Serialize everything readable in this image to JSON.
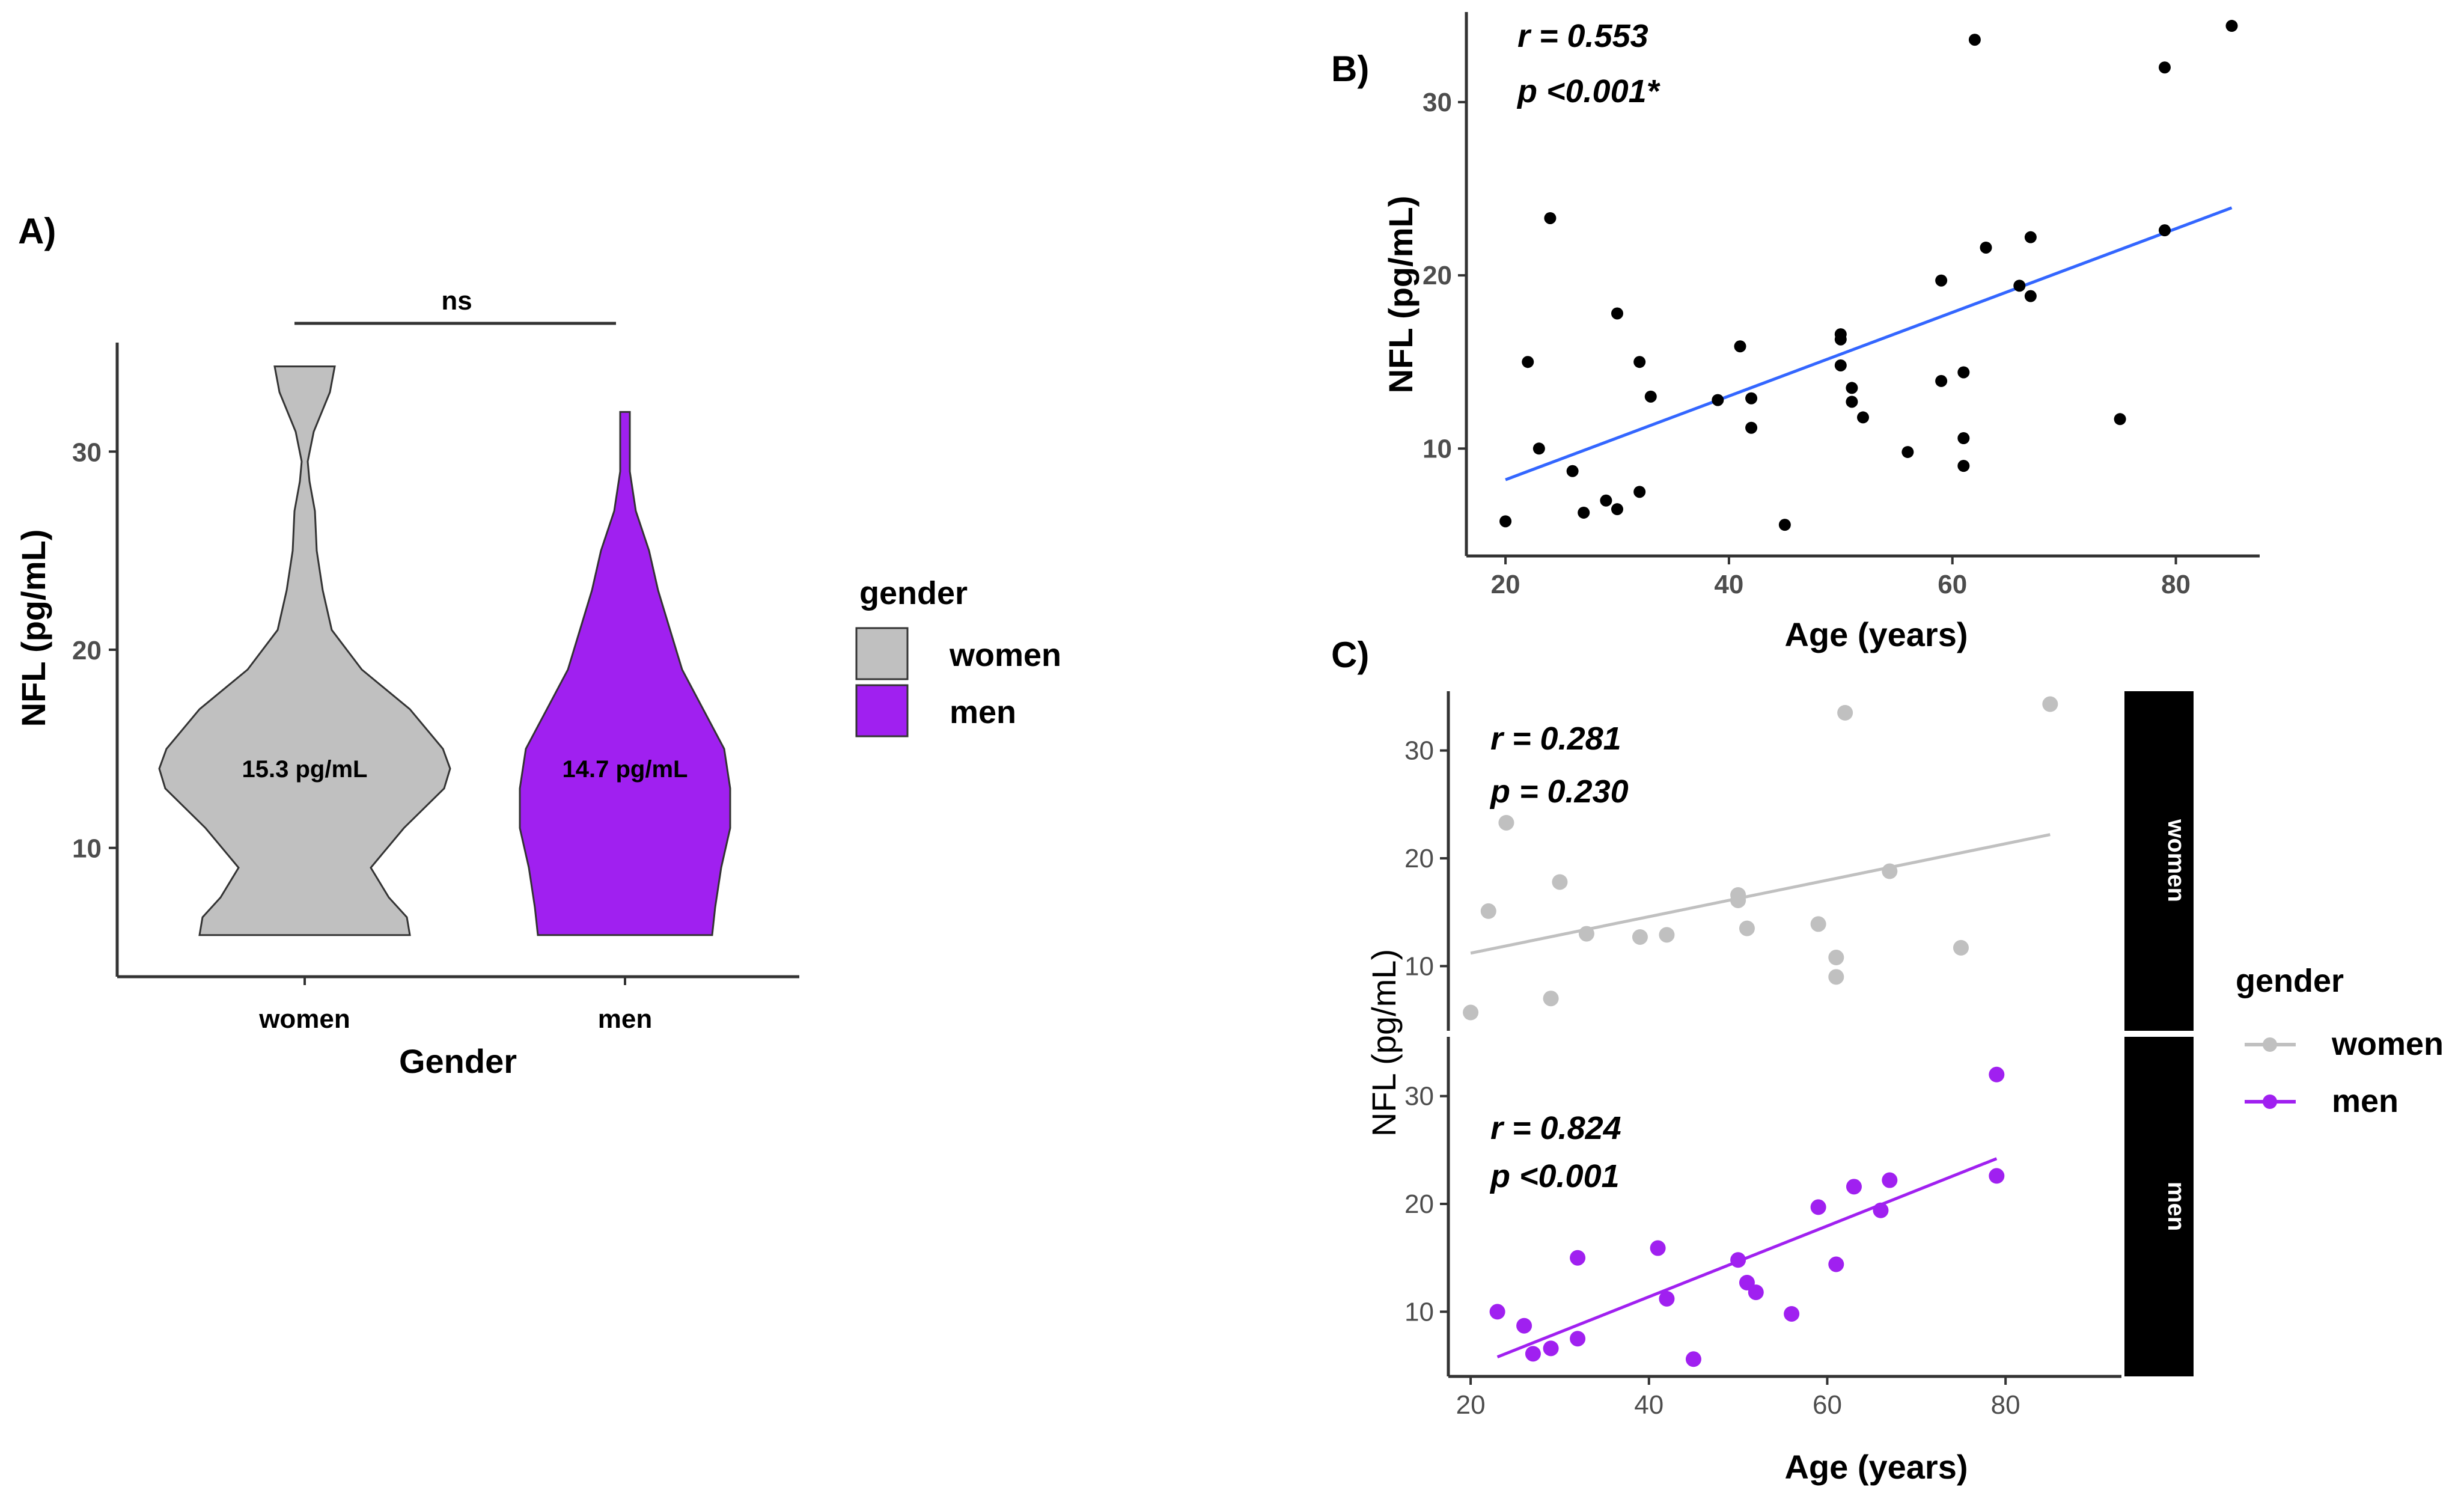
{
  "chart_data": [
    {
      "panel": "A)",
      "type": "violin",
      "xlabel": "Gender",
      "ylabel": "NFL (pg/mL)",
      "categories": [
        "women",
        "men"
      ],
      "colors": [
        "#c0c0c0",
        "#a020f0"
      ],
      "yticks": [
        10,
        20,
        30
      ],
      "ylim": [
        3.5,
        35.5
      ],
      "median_labels": [
        "15.3 pg/mL",
        "14.7 pg/mL"
      ],
      "significance": "ns",
      "legend": {
        "title": "gender",
        "entries": [
          "women",
          "men"
        ]
      }
    },
    {
      "panel": "B)",
      "type": "scatter",
      "xlabel": "Age (years)",
      "ylabel": "NFL (pg/mL)",
      "xticks": [
        20,
        40,
        60,
        80
      ],
      "yticks": [
        10,
        20,
        30
      ],
      "xlim": [
        16.5,
        87.5
      ],
      "ylim": [
        3.8,
        35.2
      ],
      "point_color": "#000000",
      "line_color": "#3366ff",
      "fit": {
        "x0": 20,
        "y0": 8.2,
        "x1": 85,
        "y1": 23.9
      },
      "r_label": "r = 0.553",
      "p_label": "p <0.001*",
      "points": [
        [
          20,
          5.8
        ],
        [
          22,
          15
        ],
        [
          23,
          10
        ],
        [
          24,
          23.3
        ],
        [
          26,
          8.7
        ],
        [
          27,
          6.3
        ],
        [
          29,
          7
        ],
        [
          30,
          6.5
        ],
        [
          30,
          17.8
        ],
        [
          32,
          15
        ],
        [
          32,
          7.5
        ],
        [
          33,
          13
        ],
        [
          39,
          12.8
        ],
        [
          41,
          15.9
        ],
        [
          42,
          12.9
        ],
        [
          42,
          11.2
        ],
        [
          45,
          5.6
        ],
        [
          50,
          16.6
        ],
        [
          50,
          16.3
        ],
        [
          50,
          14.8
        ],
        [
          51,
          13.5
        ],
        [
          51,
          12.7
        ],
        [
          52,
          11.8
        ],
        [
          56,
          9.8
        ],
        [
          59,
          19.7
        ],
        [
          59,
          13.9
        ],
        [
          61,
          14.4
        ],
        [
          61,
          10.6
        ],
        [
          61,
          9
        ],
        [
          62,
          33.6
        ],
        [
          63,
          21.6
        ],
        [
          66,
          19.4
        ],
        [
          67,
          18.8
        ],
        [
          67,
          22.2
        ],
        [
          75,
          11.7
        ],
        [
          79,
          22.6
        ],
        [
          79,
          32
        ],
        [
          85,
          34.4
        ]
      ]
    },
    {
      "panel": "C)",
      "type": "scatter",
      "xlabel": "Age (years)",
      "ylabel": "NFL (pg/mL)",
      "xticks": [
        20,
        40,
        60,
        80
      ],
      "yticks": [
        10,
        20,
        30
      ],
      "xlim": [
        17.5,
        93
      ],
      "ylim": [
        4,
        35.5
      ],
      "facets": [
        {
          "name": "women",
          "color": "#c0c0c0",
          "r_label": "r = 0.281",
          "p_label": "p = 0.230",
          "fit": {
            "x0": 20,
            "y0": 11.2,
            "x1": 85,
            "y1": 22.2
          },
          "points": [
            [
              20,
              5.7
            ],
            [
              22,
              15.1
            ],
            [
              24,
              23.3
            ],
            [
              29,
              7
            ],
            [
              30,
              17.8
            ],
            [
              33,
              13
            ],
            [
              39,
              12.7
            ],
            [
              42,
              12.9
            ],
            [
              50,
              16.6
            ],
            [
              50,
              16.1
            ],
            [
              51,
              13.5
            ],
            [
              59,
              13.9
            ],
            [
              61,
              10.8
            ],
            [
              61,
              9
            ],
            [
              62,
              33.5
            ],
            [
              67,
              18.8
            ],
            [
              75,
              11.7
            ],
            [
              85,
              34.3
            ]
          ]
        },
        {
          "name": "men",
          "color": "#a020f0",
          "r_label": "r = 0.824",
          "p_label": "p <0.001",
          "fit": {
            "x0": 23,
            "y0": 5.8,
            "x1": 79,
            "y1": 24.2
          },
          "points": [
            [
              23,
              10
            ],
            [
              26,
              8.7
            ],
            [
              27,
              6.1
            ],
            [
              29,
              6.6
            ],
            [
              32,
              15
            ],
            [
              32,
              7.5
            ],
            [
              41,
              15.9
            ],
            [
              42,
              11.2
            ],
            [
              45,
              5.6
            ],
            [
              50,
              14.8
            ],
            [
              51,
              12.7
            ],
            [
              52,
              11.8
            ],
            [
              56,
              9.8
            ],
            [
              59,
              19.7
            ],
            [
              61,
              14.4
            ],
            [
              63,
              21.6
            ],
            [
              66,
              19.4
            ],
            [
              67,
              22.2
            ],
            [
              79,
              22.6
            ],
            [
              79,
              32
            ]
          ]
        }
      ],
      "legend": {
        "title": "gender",
        "entries": [
          "women",
          "men"
        ]
      }
    }
  ]
}
